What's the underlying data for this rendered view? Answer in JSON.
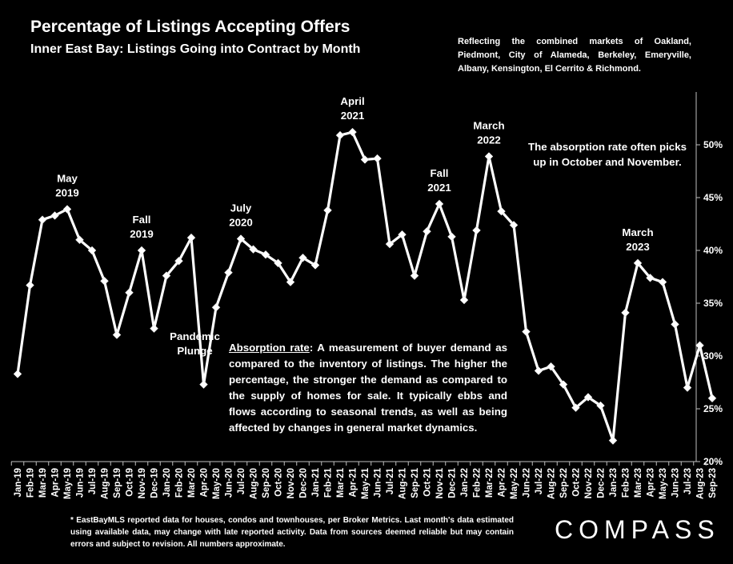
{
  "header": {
    "title": "Percentage of Listings Accepting Offers",
    "subtitle": "Inner East Bay: Listings Going into Contract by Month",
    "region_note": "Reflecting the combined markets of Oakland, Piedmont, City of Alameda, Berkeley, Emeryville, Albany, Kensington, El Cerrito & Richmond."
  },
  "definition": {
    "term": "Absorption rate",
    "text": ":  A measurement of buyer demand as compared to the inventory of listings. The higher the percentage, the stronger the demand as compared to the supply of homes for sale. It typically ebbs and flows according to seasonal trends, as well as being affected by changes in general market dynamics."
  },
  "callout": "The absorption rate often picks up in October and November.",
  "footnote": "* EastBayMLS reported data for houses, condos and townhouses, per Broker Metrics. Last month's data estimated using available data, may change with late reported activity. Data from sources deemed reliable but may contain errors and subject to revision. All numbers approximate.",
  "logo": "COMPASS",
  "annotations": [
    {
      "index": 4,
      "lines": [
        "May",
        "2019"
      ]
    },
    {
      "index": 10,
      "lines": [
        "Fall",
        "2019"
      ]
    },
    {
      "index": 15,
      "lines": [
        "Pandemic",
        "Plunge"
      ],
      "below": true
    },
    {
      "index": 18,
      "lines": [
        "July",
        "2020"
      ]
    },
    {
      "index": 27,
      "lines": [
        "April",
        "2021"
      ]
    },
    {
      "index": 34,
      "lines": [
        "Fall",
        "2021"
      ]
    },
    {
      "index": 38,
      "lines": [
        "March",
        "2022"
      ]
    },
    {
      "index": 50,
      "lines": [
        "March",
        "2023"
      ]
    }
  ],
  "chart_data": {
    "type": "line",
    "title": "Percentage of Listings Accepting Offers",
    "xlabel": "",
    "ylabel": "",
    "ylim": [
      20,
      55
    ],
    "yticks": [
      20,
      25,
      30,
      35,
      40,
      45,
      50
    ],
    "ytick_labels": [
      "20%",
      "25%",
      "30%",
      "35%",
      "40%",
      "45%",
      "50%"
    ],
    "grid": false,
    "categories": [
      "Jan-19",
      "Feb-19",
      "Mar-19",
      "Apr-19",
      "May-19",
      "Jun-19",
      "Jul-19",
      "Aug-19",
      "Sep-19",
      "Oct-19",
      "Nov-19",
      "Dec-19",
      "Jan-20",
      "Feb-20",
      "Mar-20",
      "Apr-20",
      "May-20",
      "Jun-20",
      "Jul-20",
      "Aug-20",
      "Sep-20",
      "Oct-20",
      "Nov-20",
      "Dec-20",
      "Jan-21",
      "Feb-21",
      "Mar-21",
      "Apr-21",
      "May-21",
      "Jun-21",
      "Jul-21",
      "Aug-21",
      "Sep-21",
      "Oct-21",
      "Nov-21",
      "Dec-21",
      "Jan-22",
      "Feb-22",
      "Mar-22",
      "Apr-22",
      "May-22",
      "Jun-22",
      "Jul-22",
      "Aug-22",
      "Sep-22",
      "Oct-22",
      "Nov-22",
      "Dec-22",
      "Jan-23",
      "Feb-23",
      "Mar-23",
      "Apr-23",
      "May-23",
      "Jun-23",
      "Jul-23",
      "Aug-23",
      "Sep-23"
    ],
    "series": [
      {
        "values": [
          28.3,
          36.7,
          42.9,
          43.3,
          43.9,
          41.0,
          40.0,
          37.1,
          32.0,
          36.0,
          40.0,
          32.6,
          37.6,
          39.0,
          41.2,
          27.3,
          34.6,
          37.9,
          41.1,
          40.1,
          39.6,
          38.8,
          37.0,
          39.3,
          38.6,
          43.8,
          50.9,
          51.2,
          48.6,
          48.7,
          40.6,
          41.5,
          37.6,
          41.8,
          44.4,
          41.3,
          35.3,
          41.9,
          48.9,
          43.7,
          42.4,
          32.3,
          28.6,
          29.0,
          27.3,
          25.1,
          26.1,
          25.3,
          22.0,
          34.1,
          38.8,
          37.4,
          37.0,
          33.0,
          27.0,
          31.0,
          26.0
        ]
      }
    ],
    "colors": {
      "line": "#ffffff",
      "marker": "#ffffff",
      "background": "#000000",
      "text": "#ffffff"
    }
  }
}
